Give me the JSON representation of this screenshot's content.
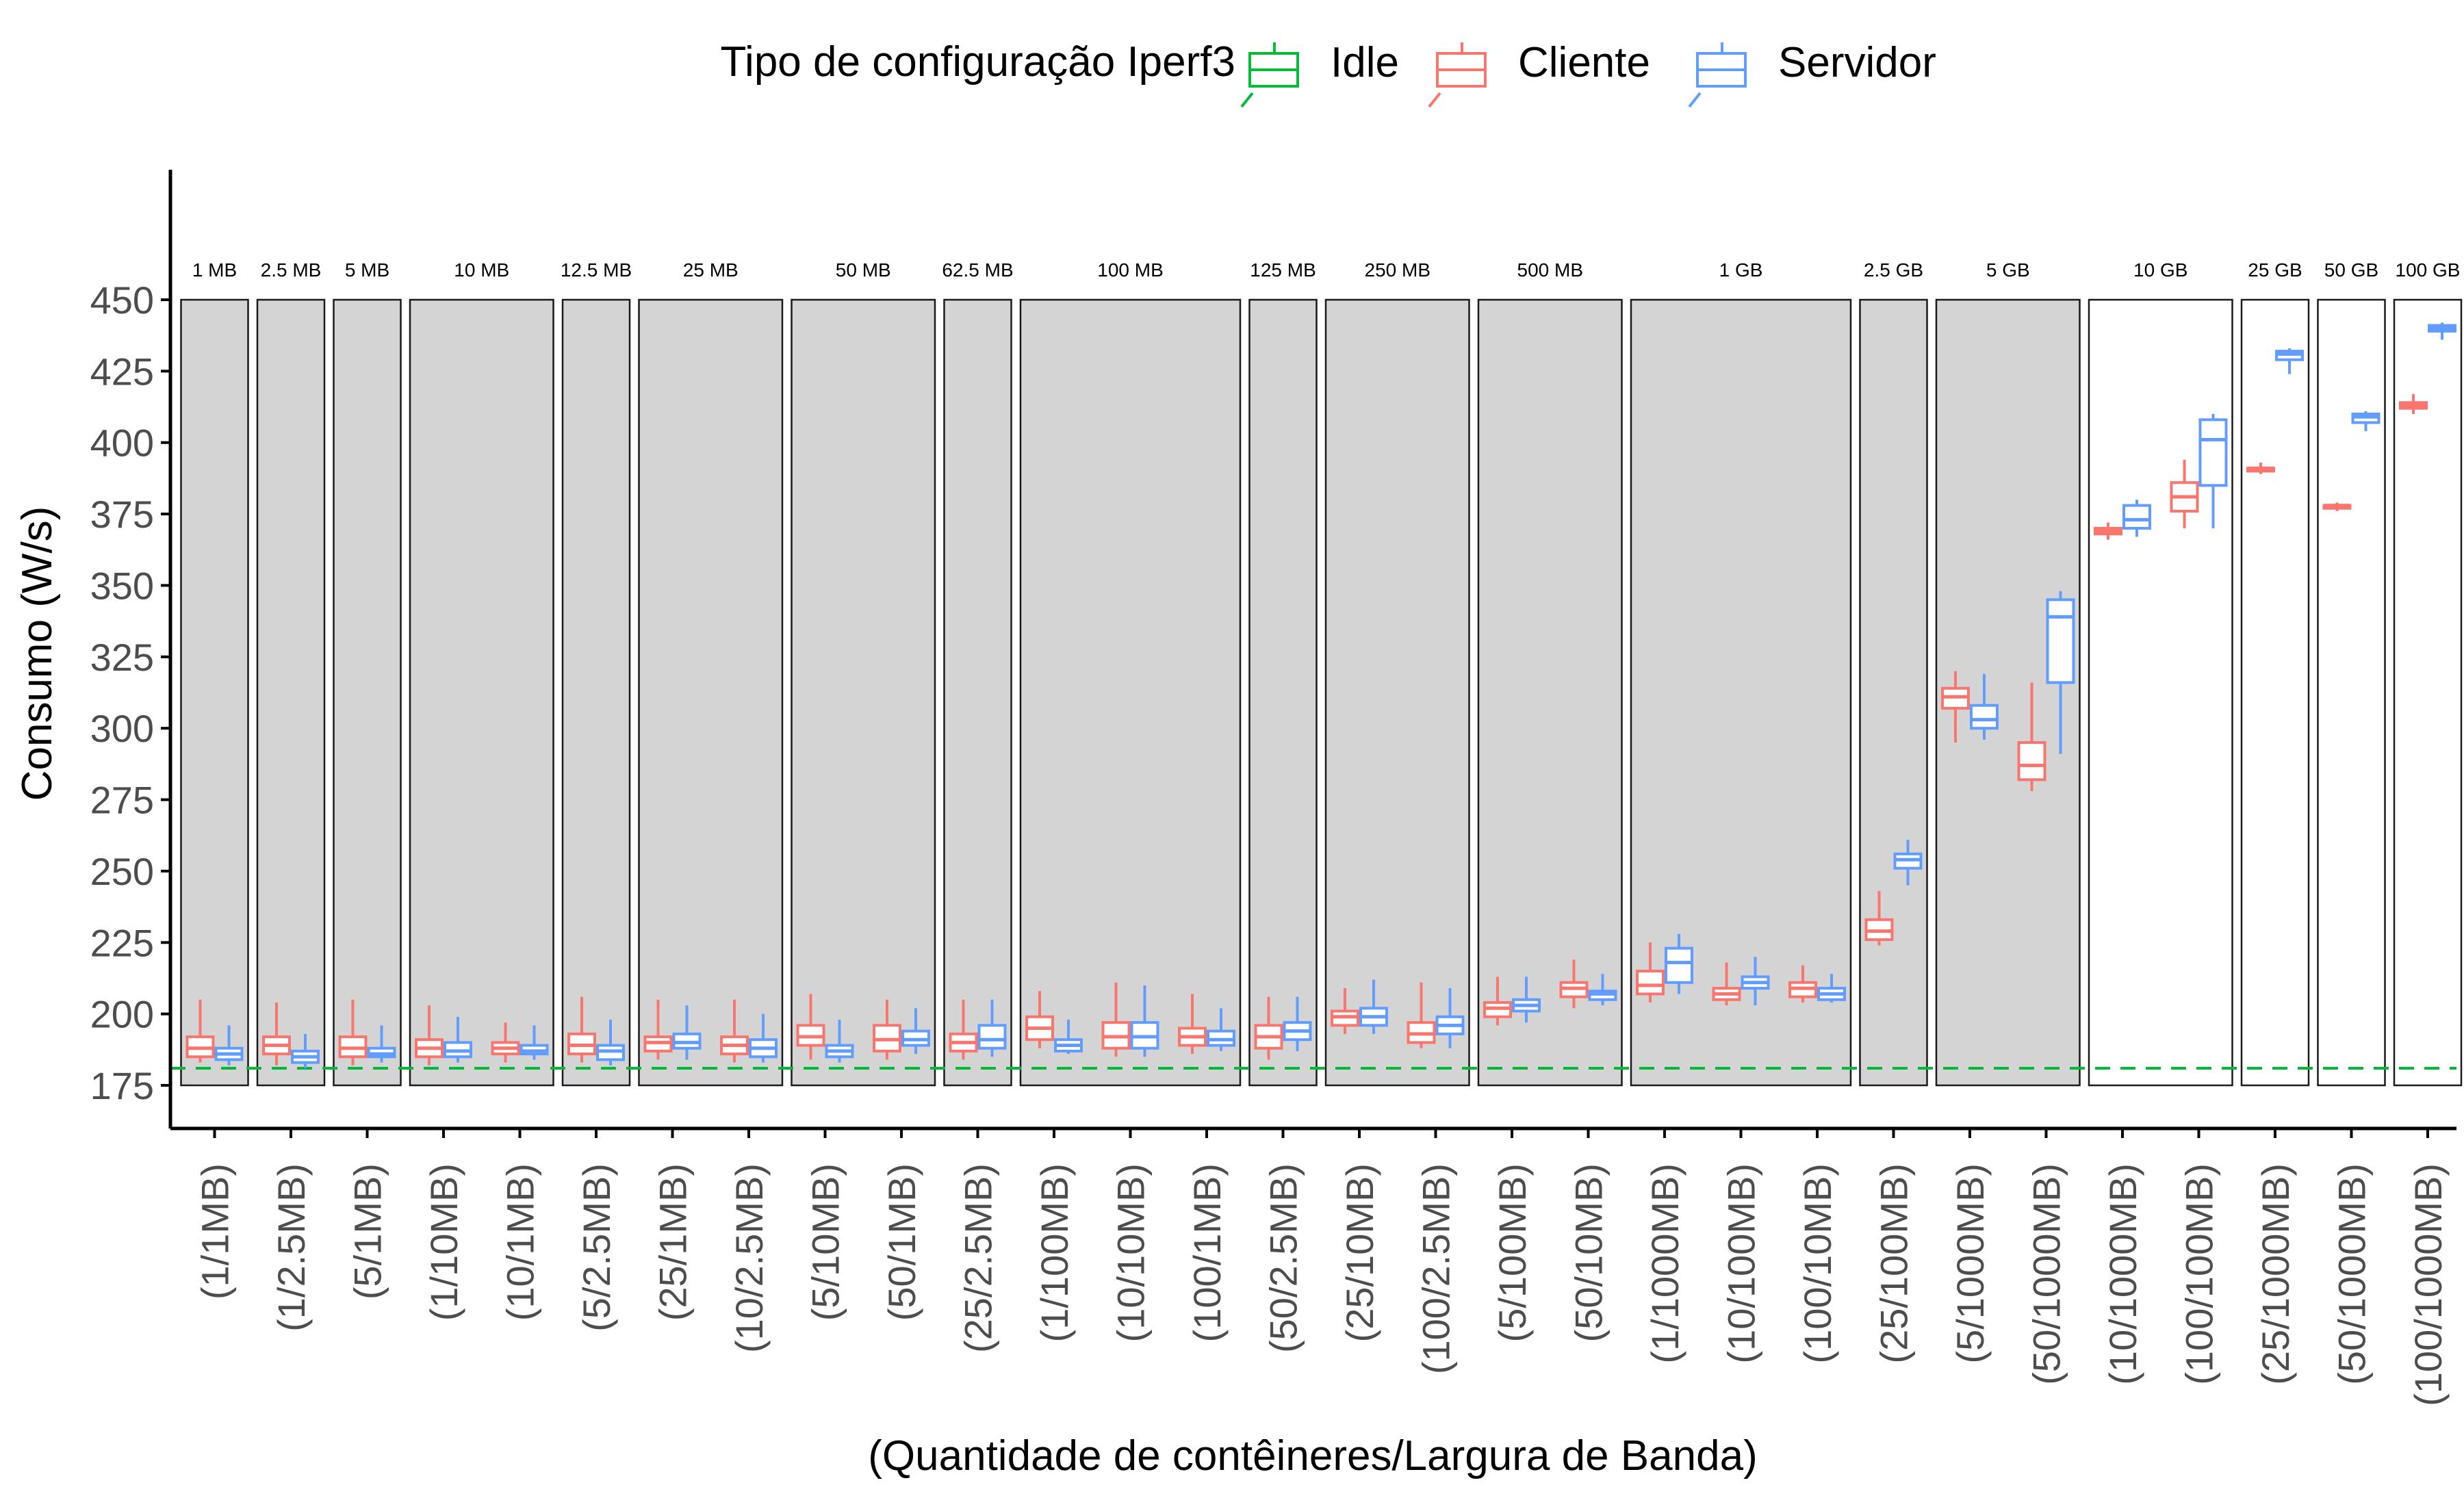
{
  "chart_data": {
    "type": "boxplot",
    "xlabel": "(Quantidade de contêineres/Largura de Banda)",
    "ylabel": "Consumo (W/s)",
    "ylim": [
      175,
      450
    ],
    "yticks": [
      175,
      200,
      225,
      250,
      275,
      300,
      325,
      350,
      375,
      400,
      425,
      450
    ],
    "legend": {
      "title": "Tipo de configuração Iperf3",
      "position": "top",
      "entries": [
        {
          "key": "idle",
          "label": "Idle",
          "color": "#00BA38"
        },
        {
          "key": "cliente",
          "label": "Cliente",
          "color": "#F8766D"
        },
        {
          "key": "servidor",
          "label": "Servidor",
          "color": "#619CFF"
        }
      ]
    },
    "idle_line": 181,
    "categories": [
      "(1/1MB)",
      "(1/2.5MB)",
      "(5/1MB)",
      "(1/10MB)",
      "(10/1MB)",
      "(5/2.5MB)",
      "(25/1MB)",
      "(10/2.5MB)",
      "(5/10MB)",
      "(50/1MB)",
      "(25/2.5MB)",
      "(1/100MB)",
      "(10/10MB)",
      "(100/1MB)",
      "(50/2.5MB)",
      "(25/10MB)",
      "(100/2.5MB)",
      "(5/100MB)",
      "(50/10MB)",
      "(1/1000MB)",
      "(10/100MB)",
      "(100/10MB)",
      "(25/100MB)",
      "(5/1000MB)",
      "(50/1000MB)",
      "(10/1000MB)",
      "(100/100MB)",
      "(25/1000MB)",
      "(50/1000MB)",
      "(100/1000MB)"
    ],
    "groups": [
      {
        "label": "1 MB",
        "start": 0,
        "end": 0,
        "shaded": true
      },
      {
        "label": "2.5 MB",
        "start": 1,
        "end": 1,
        "shaded": true
      },
      {
        "label": "5 MB",
        "start": 2,
        "end": 2,
        "shaded": true
      },
      {
        "label": "10 MB",
        "start": 3,
        "end": 4,
        "shaded": true
      },
      {
        "label": "12.5 MB",
        "start": 5,
        "end": 5,
        "shaded": true
      },
      {
        "label": "25 MB",
        "start": 6,
        "end": 7,
        "shaded": true
      },
      {
        "label": "50 MB",
        "start": 8,
        "end": 9,
        "shaded": true
      },
      {
        "label": "62.5 MB",
        "start": 10,
        "end": 10,
        "shaded": true
      },
      {
        "label": "100 MB",
        "start": 11,
        "end": 13,
        "shaded": true
      },
      {
        "label": "125 MB",
        "start": 14,
        "end": 14,
        "shaded": true
      },
      {
        "label": "250 MB",
        "start": 15,
        "end": 16,
        "shaded": true
      },
      {
        "label": "500 MB",
        "start": 17,
        "end": 18,
        "shaded": true
      },
      {
        "label": "1 GB",
        "start": 19,
        "end": 21,
        "shaded": true
      },
      {
        "label": "2.5 GB",
        "start": 22,
        "end": 22,
        "shaded": true
      },
      {
        "label": "5 GB",
        "start": 23,
        "end": 24,
        "shaded": true
      },
      {
        "label": "10 GB",
        "start": 25,
        "end": 26,
        "shaded": false
      },
      {
        "label": "25 GB",
        "start": 27,
        "end": 27,
        "shaded": false
      },
      {
        "label": "50 GB",
        "start": 28,
        "end": 28,
        "shaded": false
      },
      {
        "label": "100 GB",
        "start": 29,
        "end": 29,
        "shaded": false
      }
    ],
    "series": [
      {
        "name": "Cliente",
        "color": "#F8766D",
        "boxes": [
          [
            183,
            185,
            188,
            192,
            205
          ],
          [
            182,
            186,
            189,
            192,
            204
          ],
          [
            182,
            185,
            188,
            192,
            205
          ],
          [
            182,
            185,
            188,
            191,
            203
          ],
          [
            183,
            186,
            188,
            190,
            197
          ],
          [
            183,
            186,
            189,
            193,
            206
          ],
          [
            184,
            187,
            190,
            192,
            205
          ],
          [
            183,
            186,
            189,
            192,
            205
          ],
          [
            184,
            189,
            192,
            196,
            207
          ],
          [
            184,
            187,
            191,
            196,
            205
          ],
          [
            184,
            187,
            190,
            193,
            205
          ],
          [
            188,
            191,
            195,
            199,
            208
          ],
          [
            185,
            188,
            192,
            197,
            211
          ],
          [
            186,
            189,
            192,
            195,
            207
          ],
          [
            184,
            188,
            192,
            196,
            206
          ],
          [
            193,
            196,
            199,
            201,
            209
          ],
          [
            188,
            190,
            193,
            197,
            211
          ],
          [
            196,
            199,
            202,
            204,
            213
          ],
          [
            202,
            206,
            209,
            211,
            219
          ],
          [
            204,
            207,
            210,
            215,
            225
          ],
          [
            203,
            205,
            207,
            209,
            218
          ],
          [
            204,
            206,
            209,
            211,
            217
          ],
          [
            224,
            226,
            229,
            233,
            243
          ],
          [
            295,
            307,
            311,
            314,
            320
          ],
          [
            278,
            282,
            287,
            295,
            316
          ],
          [
            366,
            368,
            369,
            370,
            372
          ],
          [
            370,
            376,
            381,
            386,
            394
          ],
          [
            389,
            390,
            391,
            391,
            393
          ],
          [
            376,
            377,
            378,
            378,
            379
          ],
          [
            410,
            412,
            413,
            414,
            417
          ]
        ]
      },
      {
        "name": "Servidor",
        "color": "#619CFF",
        "boxes": [
          [
            182,
            184,
            186,
            188,
            196
          ],
          [
            181,
            183,
            185,
            187,
            193
          ],
          [
            183,
            185,
            186,
            188,
            196
          ],
          [
            183,
            185,
            187,
            190,
            199
          ],
          [
            184,
            186,
            187,
            189,
            196
          ],
          [
            182,
            184,
            187,
            189,
            198
          ],
          [
            184,
            188,
            190,
            193,
            203
          ],
          [
            183,
            185,
            188,
            191,
            200
          ],
          [
            183,
            185,
            187,
            189,
            198
          ],
          [
            186,
            189,
            191,
            194,
            202
          ],
          [
            185,
            188,
            191,
            196,
            205
          ],
          [
            186,
            187,
            189,
            191,
            198
          ],
          [
            185,
            188,
            192,
            197,
            210
          ],
          [
            187,
            189,
            191,
            194,
            202
          ],
          [
            187,
            191,
            194,
            197,
            206
          ],
          [
            193,
            196,
            199,
            202,
            212
          ],
          [
            188,
            193,
            196,
            199,
            209
          ],
          [
            197,
            201,
            203,
            205,
            213
          ],
          [
            203,
            205,
            207,
            208,
            214
          ],
          [
            207,
            211,
            218,
            223,
            228
          ],
          [
            203,
            209,
            211,
            213,
            220
          ],
          [
            204,
            205,
            207,
            209,
            214
          ],
          [
            245,
            251,
            254,
            256,
            261
          ],
          [
            296,
            300,
            303,
            308,
            319
          ],
          [
            291,
            316,
            339,
            345,
            348
          ],
          [
            367,
            370,
            373,
            378,
            380
          ],
          [
            370,
            385,
            401,
            408,
            410
          ],
          [
            424,
            429,
            431,
            432,
            433
          ],
          [
            404,
            407,
            409,
            410,
            411
          ],
          [
            436,
            439,
            440,
            441,
            442
          ]
        ]
      }
    ]
  }
}
